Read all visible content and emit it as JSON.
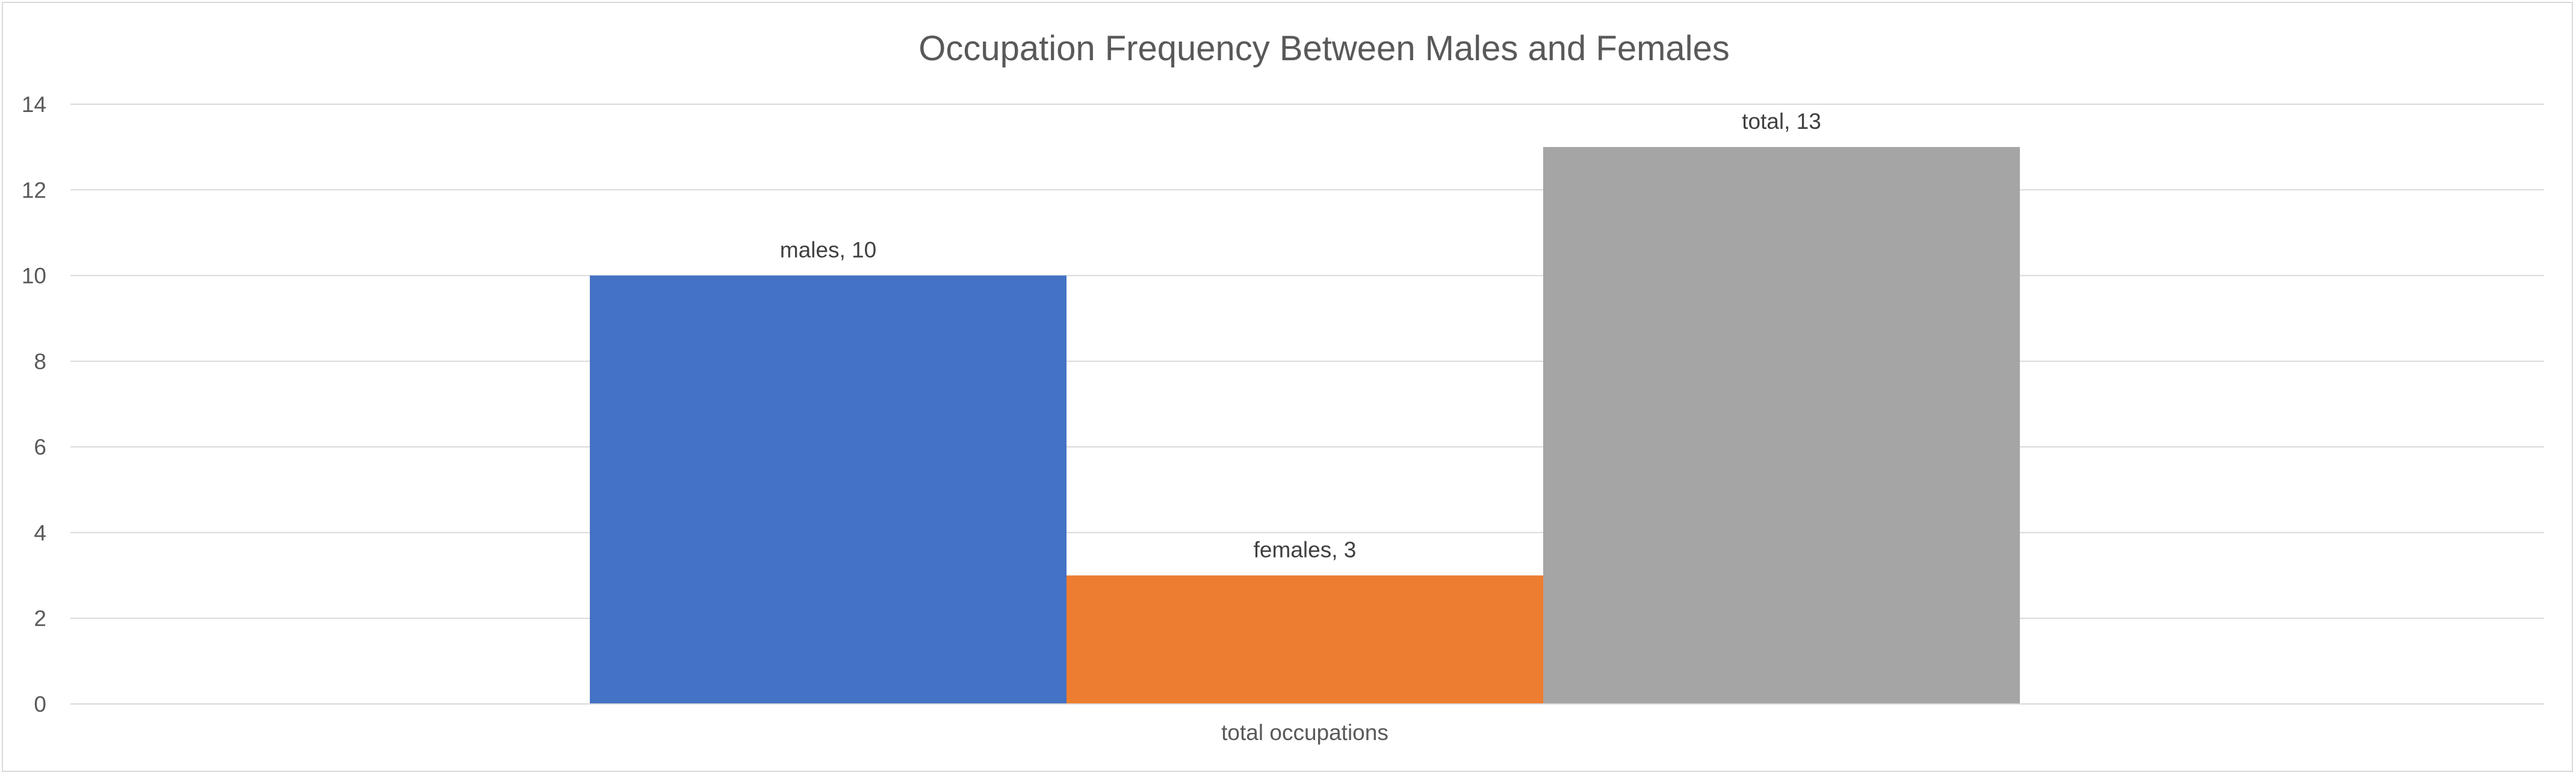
{
  "chart_data": {
    "type": "bar",
    "title": "Occupation Frequency Between Males and Females",
    "categories": [
      "total occupations"
    ],
    "series": [
      {
        "name": "males",
        "values": [
          10
        ],
        "color": "#4472C4"
      },
      {
        "name": "females",
        "values": [
          3
        ],
        "color": "#ED7D31"
      },
      {
        "name": "total",
        "values": [
          13
        ],
        "color": "#A5A5A5"
      }
    ],
    "data_labels": [
      "males, 10",
      "females, 3",
      "total, 13"
    ],
    "ylim": [
      0,
      14
    ],
    "y_ticks": [
      "0",
      "2",
      "4",
      "6",
      "8",
      "10",
      "12",
      "14"
    ],
    "grid": true,
    "legend": "none",
    "gridline_color": "#D9D9D9"
  }
}
